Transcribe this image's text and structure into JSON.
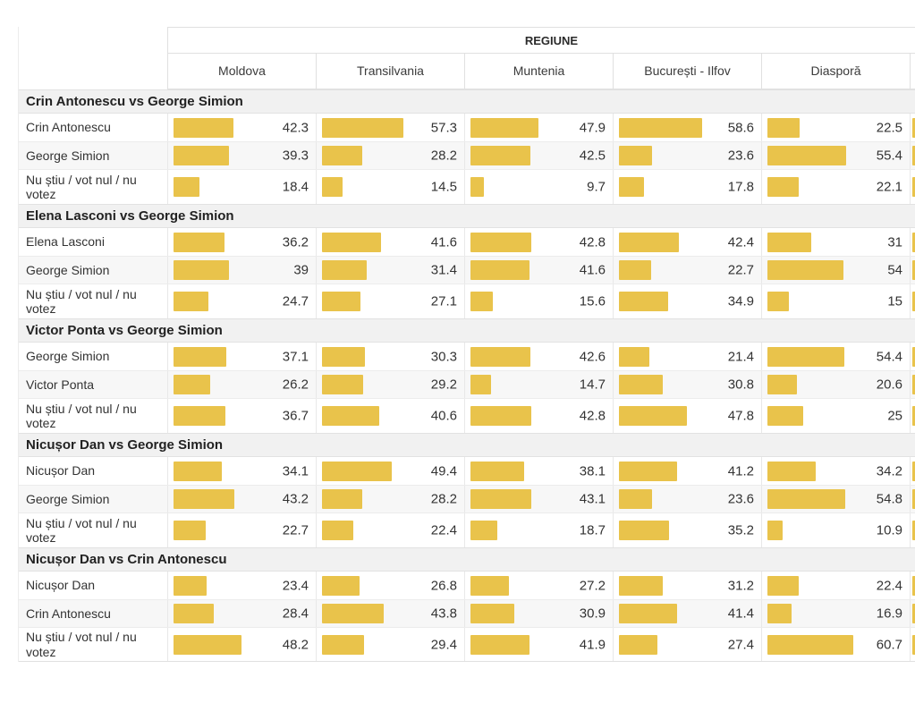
{
  "table": {
    "group_header": "REGIUNE",
    "regions": [
      "Moldova",
      "Transilvania",
      "Muntenia",
      "București - Ilfov",
      "Diasporă"
    ],
    "bar_color": "#E9C34B",
    "sections": [
      {
        "title": "Crin Antonescu vs George Simion",
        "rows": [
          {
            "label": "Crin Antonescu",
            "values": [
              "42.3",
              "57.3",
              "47.9",
              "58.6",
              "22.5"
            ]
          },
          {
            "label": "George Simion",
            "values": [
              "39.3",
              "28.2",
              "42.5",
              "23.6",
              "55.4"
            ]
          },
          {
            "label": "Nu știu / vot nul / nu votez",
            "values": [
              "18.4",
              "14.5",
              "9.7",
              "17.8",
              "22.1"
            ]
          }
        ]
      },
      {
        "title": "Elena Lasconi vs George Simion",
        "rows": [
          {
            "label": "Elena Lasconi",
            "values": [
              "36.2",
              "41.6",
              "42.8",
              "42.4",
              "31"
            ]
          },
          {
            "label": "George Simion",
            "values": [
              "39",
              "31.4",
              "41.6",
              "22.7",
              "54"
            ]
          },
          {
            "label": "Nu știu / vot nul / nu votez",
            "values": [
              "24.7",
              "27.1",
              "15.6",
              "34.9",
              "15"
            ]
          }
        ]
      },
      {
        "title": "Victor Ponta vs George Simion",
        "rows": [
          {
            "label": "George Simion",
            "values": [
              "37.1",
              "30.3",
              "42.6",
              "21.4",
              "54.4"
            ]
          },
          {
            "label": "Victor Ponta",
            "values": [
              "26.2",
              "29.2",
              "14.7",
              "30.8",
              "20.6"
            ]
          },
          {
            "label": "Nu știu / vot nul / nu votez",
            "values": [
              "36.7",
              "40.6",
              "42.8",
              "47.8",
              "25"
            ]
          }
        ]
      },
      {
        "title": "Nicușor Dan vs George Simion",
        "rows": [
          {
            "label": "Nicușor Dan",
            "values": [
              "34.1",
              "49.4",
              "38.1",
              "41.2",
              "34.2"
            ]
          },
          {
            "label": "George Simion",
            "values": [
              "43.2",
              "28.2",
              "43.1",
              "23.6",
              "54.8"
            ]
          },
          {
            "label": "Nu știu / vot nul / nu votez",
            "values": [
              "22.7",
              "22.4",
              "18.7",
              "35.2",
              "10.9"
            ]
          }
        ]
      },
      {
        "title": "Nicușor Dan vs Crin Antonescu",
        "rows": [
          {
            "label": "Nicușor Dan",
            "values": [
              "23.4",
              "26.8",
              "27.2",
              "31.2",
              "22.4"
            ]
          },
          {
            "label": "Crin Antonescu",
            "values": [
              "28.4",
              "43.8",
              "30.9",
              "41.4",
              "16.9"
            ]
          },
          {
            "label": "Nu știu / vot nul / nu votez",
            "values": [
              "48.2",
              "29.4",
              "41.9",
              "27.4",
              "60.7"
            ]
          }
        ]
      }
    ]
  },
  "chart_data": {
    "type": "bar",
    "title": "REGIUNE",
    "categories": [
      "Moldova",
      "Transilvania",
      "Muntenia",
      "București - Ilfov",
      "Diasporă"
    ],
    "value_range": [
      0,
      100
    ],
    "bar_color": "#E9C34B",
    "groups": [
      {
        "title": "Crin Antonescu vs George Simion",
        "series": [
          {
            "name": "Crin Antonescu",
            "values": [
              42.3,
              57.3,
              47.9,
              58.6,
              22.5
            ]
          },
          {
            "name": "George Simion",
            "values": [
              39.3,
              28.2,
              42.5,
              23.6,
              55.4
            ]
          },
          {
            "name": "Nu știu / vot nul / nu votez",
            "values": [
              18.4,
              14.5,
              9.7,
              17.8,
              22.1
            ]
          }
        ]
      },
      {
        "title": "Elena Lasconi vs George Simion",
        "series": [
          {
            "name": "Elena Lasconi",
            "values": [
              36.2,
              41.6,
              42.8,
              42.4,
              31
            ]
          },
          {
            "name": "George Simion",
            "values": [
              39,
              31.4,
              41.6,
              22.7,
              54
            ]
          },
          {
            "name": "Nu știu / vot nul / nu votez",
            "values": [
              24.7,
              27.1,
              15.6,
              34.9,
              15
            ]
          }
        ]
      },
      {
        "title": "Victor Ponta vs George Simion",
        "series": [
          {
            "name": "George Simion",
            "values": [
              37.1,
              30.3,
              42.6,
              21.4,
              54.4
            ]
          },
          {
            "name": "Victor Ponta",
            "values": [
              26.2,
              29.2,
              14.7,
              30.8,
              20.6
            ]
          },
          {
            "name": "Nu știu / vot nul / nu votez",
            "values": [
              36.7,
              40.6,
              42.8,
              47.8,
              25
            ]
          }
        ]
      },
      {
        "title": "Nicușor Dan vs George Simion",
        "series": [
          {
            "name": "Nicușor Dan",
            "values": [
              34.1,
              49.4,
              38.1,
              41.2,
              34.2
            ]
          },
          {
            "name": "George Simion",
            "values": [
              43.2,
              28.2,
              43.1,
              23.6,
              54.8
            ]
          },
          {
            "name": "Nu știu / vot nul / nu votez",
            "values": [
              22.7,
              22.4,
              18.7,
              35.2,
              10.9
            ]
          }
        ]
      },
      {
        "title": "Nicușor Dan vs Crin Antonescu",
        "series": [
          {
            "name": "Nicușor Dan",
            "values": [
              23.4,
              26.8,
              27.2,
              31.2,
              22.4
            ]
          },
          {
            "name": "Crin Antonescu",
            "values": [
              28.4,
              43.8,
              30.9,
              41.4,
              16.9
            ]
          },
          {
            "name": "Nu știu / vot nul / nu votez",
            "values": [
              48.2,
              29.4,
              41.9,
              27.4,
              60.7
            ]
          }
        ]
      }
    ]
  }
}
